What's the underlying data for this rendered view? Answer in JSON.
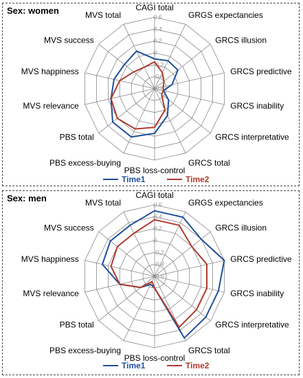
{
  "colors": {
    "time1": "#1f4e9c",
    "time2": "#b03a2e",
    "grid": "#8a8a8a"
  },
  "chart_data": [
    {
      "type": "radar",
      "title": "Sex: women",
      "axes": [
        "CAGI total",
        "GRGS expectancies",
        "GRCS illusion",
        "GRCS predictive",
        "GRCS inability",
        "GRCS interpretative",
        "GRCS total",
        "PBS loss-control",
        "PBS excess-buying",
        "PBS total",
        "MVS relevance",
        "MVS happiness",
        "MVS success",
        "MVS total"
      ],
      "ticks": [
        "-0.6",
        "-0.4",
        "-0.2",
        "0",
        "0.2",
        "0.4",
        "0.6"
      ],
      "rlim": [
        -0.6,
        0.6
      ],
      "grid": true,
      "legend_position": "bottom",
      "series": [
        {
          "name": "Time1",
          "values": [
            -0.1,
            -0.08,
            -0.1,
            -0.3,
            -0.45,
            -0.3,
            -0.1,
            0.15,
            0.3,
            0.3,
            0.15,
            0.1,
            0.05,
            0.1
          ]
        },
        {
          "name": "Time2",
          "values": [
            -0.15,
            -0.3,
            -0.4,
            -0.45,
            -0.45,
            -0.45,
            -0.2,
            0.05,
            0.15,
            0.2,
            0.15,
            0.0,
            -0.15,
            -0.2
          ]
        }
      ]
    },
    {
      "type": "radar",
      "title": "Sex: men",
      "axes": [
        "CAGI total",
        "GRGS expectancies",
        "GRCS illusion",
        "GRCS predictive",
        "GRCS inability",
        "GRCS interpretative",
        "GRCS total",
        "PBS loss-control",
        "PBS excess-buying",
        "PBS total",
        "MVS relevance",
        "MVS happiness",
        "MVS success",
        "MVS total"
      ],
      "ticks": [
        "-0.6",
        "-0.4",
        "-0.2",
        "0",
        "0.2",
        "0.4",
        "0.6"
      ],
      "rlim": [
        -0.6,
        0.6
      ],
      "grid": true,
      "legend_position": "bottom",
      "series": [
        {
          "name": "Time1",
          "values": [
            0.5,
            0.5,
            0.4,
            0.6,
            0.5,
            0.5,
            0.55,
            -0.4,
            -0.45,
            -0.3,
            0.0,
            0.3,
            0.35,
            0.35
          ]
        },
        {
          "name": "Time2",
          "values": [
            0.35,
            0.35,
            0.2,
            0.3,
            0.3,
            0.3,
            0.35,
            -0.4,
            -0.5,
            -0.3,
            0.0,
            0.15,
            0.2,
            0.2
          ]
        }
      ]
    }
  ]
}
